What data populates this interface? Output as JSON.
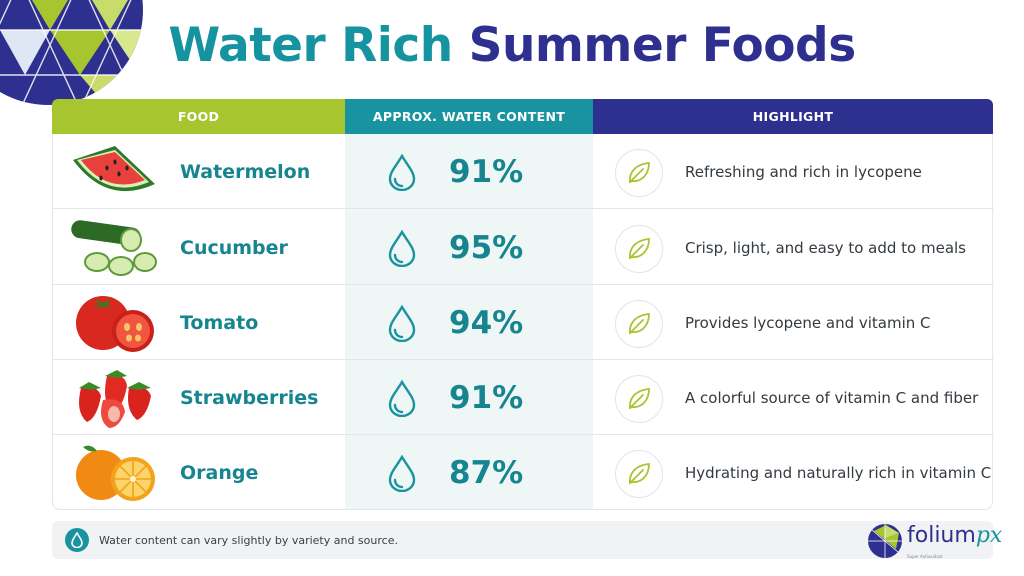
{
  "title": {
    "part1": "Water Rich",
    "part2": "Summer Foods"
  },
  "headers": {
    "food": "FOOD",
    "water": "APPROX. WATER CONTENT",
    "highlight": "HIGHLIGHT"
  },
  "rows": [
    {
      "food": "Watermelon",
      "water": "91%",
      "highlight": "Refreshing and rich in lycopene",
      "image": "watermelon-slice"
    },
    {
      "food": "Cucumber",
      "water": "95%",
      "highlight": "Crisp, light, and easy to add to meals",
      "image": "cucumber-slices"
    },
    {
      "food": "Tomato",
      "water": "94%",
      "highlight": "Provides lycopene and vitamin C",
      "image": "tomato-halves"
    },
    {
      "food": "Strawberries",
      "water": "91%",
      "highlight": "A colorful source of vitamin C and fiber",
      "image": "strawberries"
    },
    {
      "food": "Orange",
      "water": "87%",
      "highlight": "Hydrating and naturally rich in vitamin C",
      "image": "orange-halves"
    }
  ],
  "footnote": "Water content can vary slightly by variety and source.",
  "logo": {
    "name": "folium",
    "suffix": "px",
    "tagline": "Super Antioxidant"
  },
  "icons": {
    "water": "water-drop-icon",
    "highlight": "leaf-icon"
  },
  "colors": {
    "teal": "#18939f",
    "navy": "#2e308f",
    "lime": "#a7c52f"
  }
}
